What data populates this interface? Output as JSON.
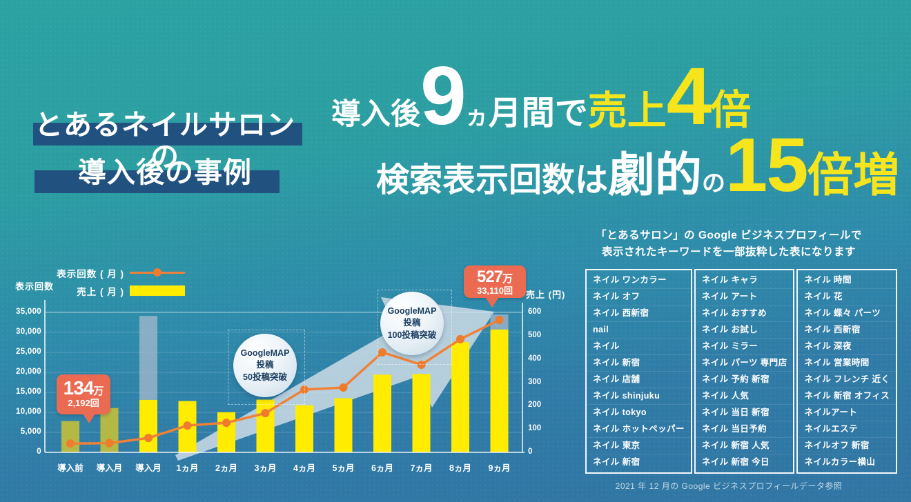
{
  "banner": {
    "line1": "とあるネイルサロンの",
    "line2": "導入後の事例"
  },
  "headline": {
    "l1_white1": "導入後",
    "l1_num1": "9",
    "l1_kana": "ヵ",
    "l1_white2": "月間で",
    "l1_yellow1": "売上",
    "l1_num2": "4",
    "l1_yellow2": "倍",
    "l2_white1": "検索表示回数は",
    "l2_white2": "劇的",
    "l2_white3": "の",
    "l2_num": "15",
    "l2_yellow": "倍増"
  },
  "colors": {
    "background_teal": "#2ca2a3",
    "background_blue": "#3175a3",
    "banner_navy": "#21517f",
    "headline_yellow": "#f6e51c",
    "bar_yellow": "#ffec00",
    "bar_olive_pre_period": "#b4b845",
    "line_orange": "#ef8138",
    "callout_red": "#ea6a52",
    "milestone_text_navy": "#1d3f63",
    "arrow_fill": "#d3dfe8"
  },
  "chart_data": {
    "type": "bar+line",
    "categories": [
      "導入前",
      "導入月",
      "導入月",
      "1ヵ月",
      "2ヵ月",
      "3ヵ月",
      "4ヵ月",
      "5ヵ月",
      "6ヵ月",
      "7ヵ月",
      "8ヵ月",
      "9ヵ月"
    ],
    "series": [
      {
        "name": "表示回数 ( 月 )",
        "type": "line",
        "axis": "left",
        "values": [
          2192,
          2300,
          3600,
          6700,
          7400,
          9800,
          15700,
          16200,
          25000,
          21900,
          28300,
          33110
        ]
      },
      {
        "name": "売上 ( 月 )",
        "type": "bar",
        "axis": "right",
        "values": [
          134,
          190,
          225,
          220,
          172,
          226,
          202,
          232,
          333,
          336,
          472,
          527
        ]
      }
    ],
    "left_axis": {
      "label": "表示回数",
      "max": 35000,
      "ticks": [
        35000,
        30000,
        25000,
        20000,
        15000,
        10000,
        5000,
        0
      ]
    },
    "right_axis": {
      "label": "売上 (円)",
      "max": 600,
      "ticks": [
        600,
        500,
        400,
        300,
        200,
        100,
        0
      ]
    },
    "legend": [
      {
        "label": "表示回数 ( 月 )",
        "marker": "line"
      },
      {
        "label": "売上 ( 月 )",
        "marker": "bar"
      }
    ],
    "pre_period_bar_indices": [
      0,
      1
    ],
    "highlight_band": {
      "index": 2,
      "top_value": 585
    },
    "bar_cap": {
      "index": 11,
      "top_value": 591
    },
    "annotations": {
      "callout_start": {
        "value_big": "134",
        "unit": "万",
        "value_small": "2,192回"
      },
      "callout_end": {
        "value_big": "527",
        "unit": "万",
        "value_small": "33,110回"
      },
      "milestone_1": {
        "lines": [
          "GoogleMAP",
          "投稿",
          "50投稿突破"
        ]
      },
      "milestone_2": {
        "lines": [
          "GoogleMAP",
          "投稿",
          "100投稿突破"
        ]
      }
    },
    "grid": "horizontal",
    "legend_position": "top-left"
  },
  "keywords_panel": {
    "title_line1": "「とあるサロン」の Google ビジネスプロフィールで",
    "title_line2": "表示されたキーワードを一部抜粋した表になります",
    "columns": [
      [
        "ネイル ワンカラー",
        "ネイル オフ",
        "ネイル 西新宿",
        "nail",
        "ネイル",
        "ネイル 新宿",
        "ネイル 店舗",
        "ネイル shinjuku",
        "ネイル tokyo",
        "ネイル ホットペッパー",
        "ネイル 東京",
        "ネイル 新宿"
      ],
      [
        "ネイル キャラ",
        "ネイル アート",
        "ネイル おすすめ",
        "ネイル お試し",
        "ネイル ミラー",
        "ネイル パーツ 専門店",
        "ネイル 予約 新宿",
        "ネイル 人気",
        "ネイル 当日 新宿",
        "ネイル 当日予約",
        "ネイル 新宿 人気",
        "ネイル 新宿 今日"
      ],
      [
        "ネイル 時間",
        "ネイル 花",
        "ネイル 蝶々 パーツ",
        "ネイル 西新宿",
        "ネイル 深夜",
        "ネイル 営業時間",
        "ネイル フレンチ 近く",
        "ネイル 新宿 オフィス",
        "ネイルアート",
        "ネイルエステ",
        "ネイルオフ 新宿",
        "ネイルカラー横山"
      ]
    ],
    "caption": "2021 年 12 月の Google ビジネスプロフィールデータ参照"
  }
}
